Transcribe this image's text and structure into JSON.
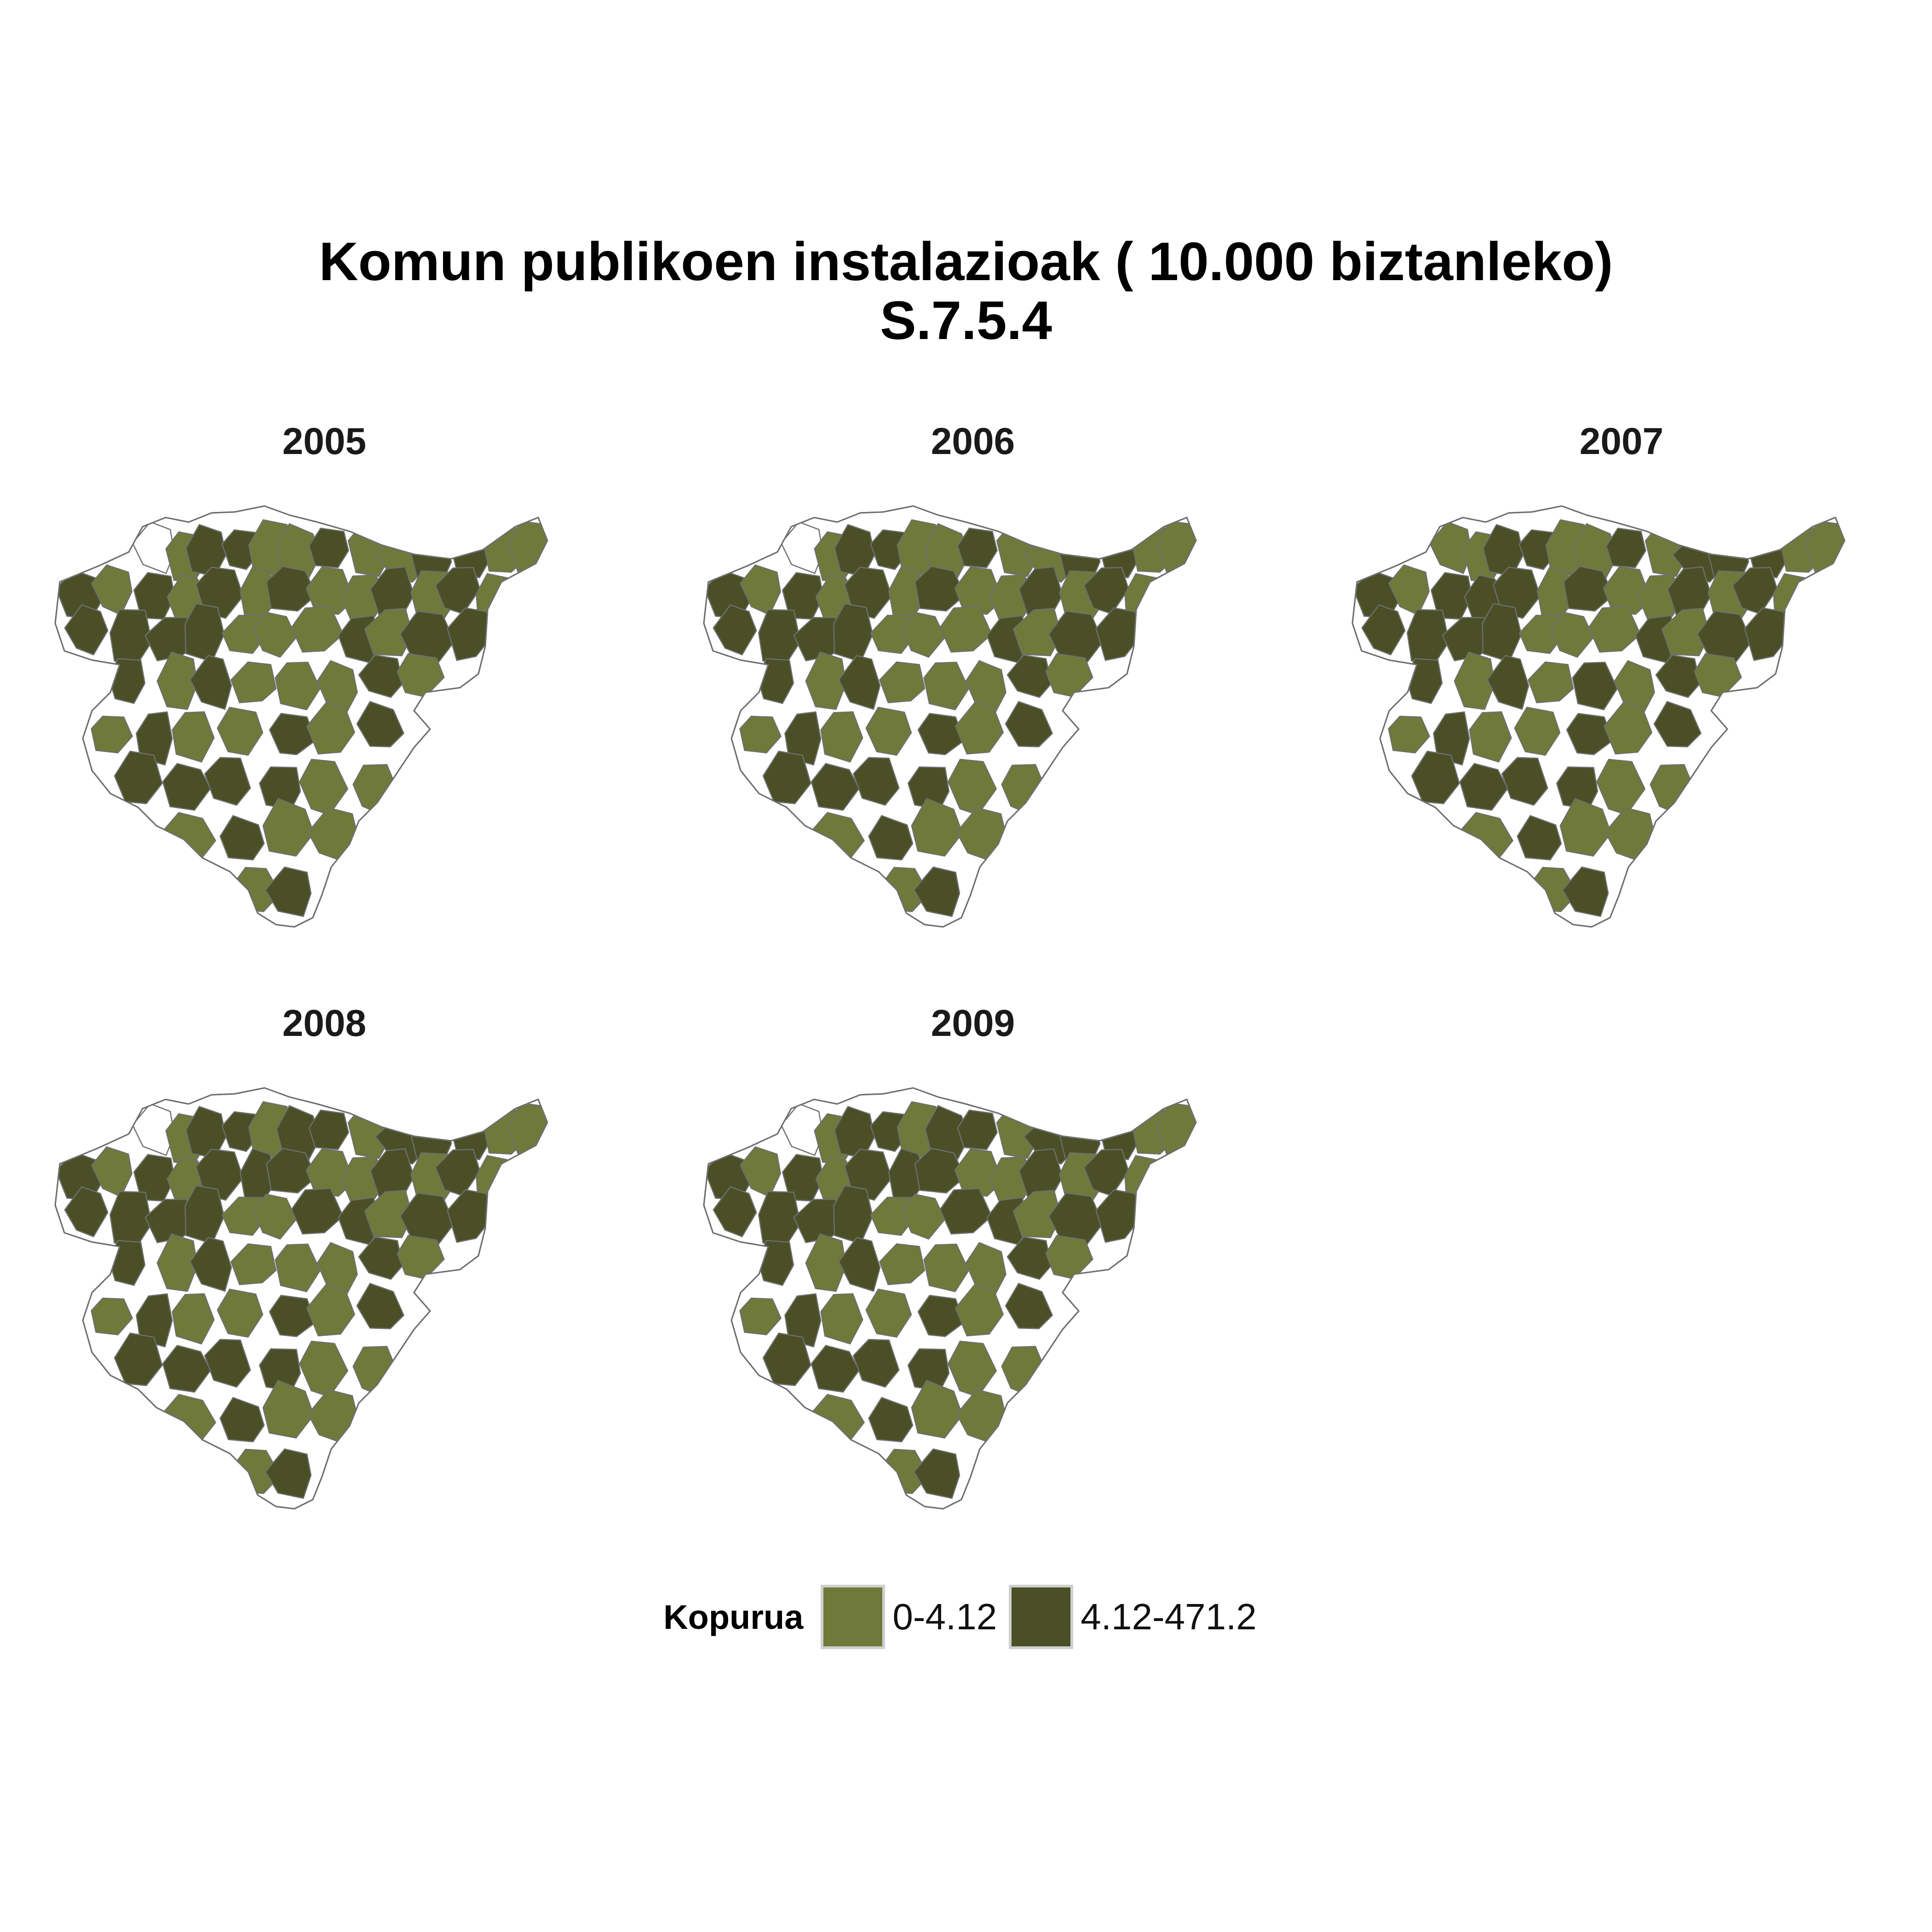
{
  "title": {
    "line1": "Komun publikoen instalazioak ( 10.000 biztanleko)",
    "line2": "S.7.5.4"
  },
  "colors": {
    "low": "#6f7a3a",
    "high": "#4a4f26",
    "empty": "#ffffff",
    "border": "#6e6e6e"
  },
  "legend": {
    "title": "Kopurua",
    "items": [
      {
        "label": "0-4.12",
        "color": "#6f7a3a"
      },
      {
        "label": "4.12-471.2",
        "color": "#4a4f26"
      }
    ]
  },
  "panels": [
    {
      "year": "2005",
      "classes": "lLHHLLHLLHHLLHLHLHLHLLHLHLHHHHLLLHLHHHLHLLLHLLHLLHLHHHHHLLLHLLLHHLHHLLLLHLHLLHLHHLHLLLHLLHHHLLHHL"
    },
    {
      "year": "2006",
      "classes": "lLHHLLHLLHHLLHLHLHLHLLHLHLHHHHLLLHLHHHLHLLLHLLHLLHLHHHHHLLLHLLLHHLHHLLLLHLHLLHLHHLHLLLHLLHHHLLHHL"
    },
    {
      "year": "2007",
      "classes": "LLHHLLHLHHHLLHLHHHLHLLHLHLHHHHLLLHLHHHLHLHLHLLHLLHLHHHHHLLLHLLLHHLHHLLLLHLHLLHLHHLHLLLHLLHHHLLHHL"
    },
    {
      "year": "2008",
      "classes": "lLHHLHHLHHHLLHLHLHHHLLHLHLHHHHLLHHLHHHLHLLLHLLHLLHLHHHHHLLLHLLLHHLHHLLLLHLHLLHLHHLHLLLHLLHHHLLHHL"
    },
    {
      "year": "2009",
      "classes": "lLHHLHHLHHHLLHLHLHHHLLHLHLHHHHLLHHLHHHLHLLLHLLHLLHLHHHHHLLLHLLLHHLHHLLLLHLHLLHLHHLHLLLHLLHHHLLHHL"
    }
  ]
}
